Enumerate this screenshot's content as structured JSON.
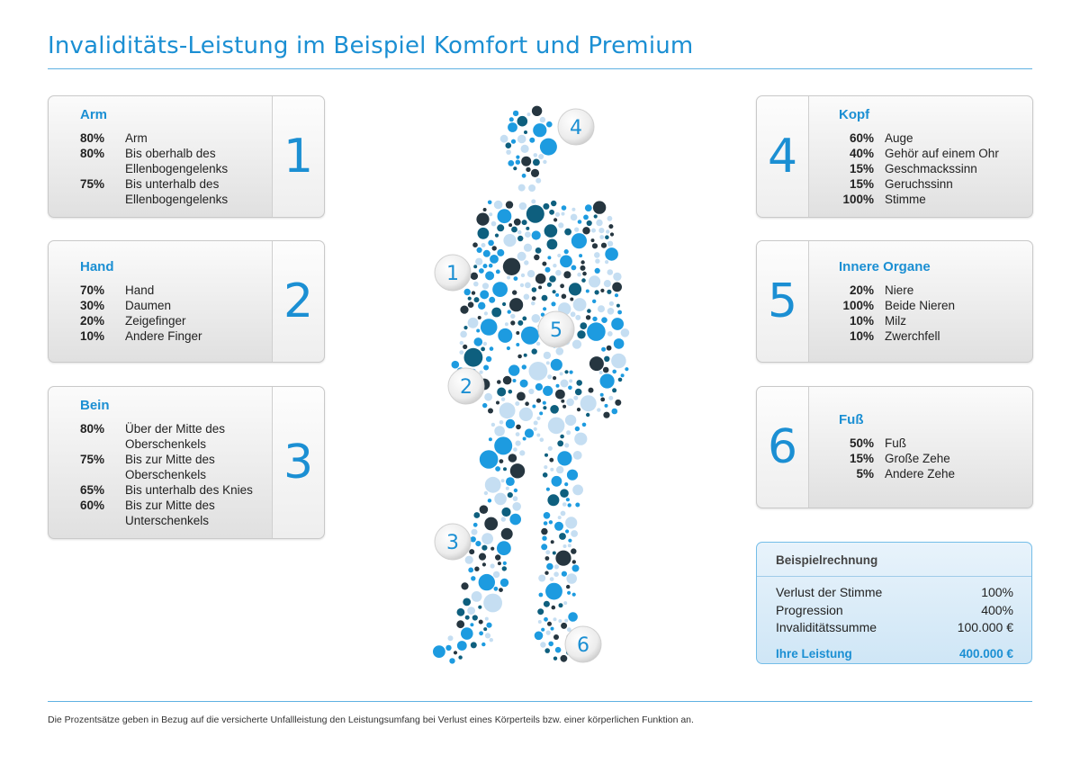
{
  "title": "Invaliditäts-Leistung im Beispiel Komfort und Premium",
  "cards_left": [
    {
      "number": "1",
      "title": "Arm",
      "rows": [
        {
          "pct": "80%",
          "label": "Arm"
        },
        {
          "pct": "80%",
          "label": "Bis oberhalb des Ellenbogengelenks"
        },
        {
          "pct": "75%",
          "label": "Bis unterhalb des Ellenbogengelenks"
        }
      ]
    },
    {
      "number": "2",
      "title": "Hand",
      "rows": [
        {
          "pct": "70%",
          "label": "Hand"
        },
        {
          "pct": "30%",
          "label": "Daumen"
        },
        {
          "pct": "20%",
          "label": "Zeigefinger"
        },
        {
          "pct": "10%",
          "label": "Andere Finger"
        }
      ]
    },
    {
      "number": "3",
      "title": "Bein",
      "rows": [
        {
          "pct": "80%",
          "label": "Über der Mitte des Oberschenkels"
        },
        {
          "pct": "75%",
          "label": "Bis zur Mitte des Oberschenkels"
        },
        {
          "pct": "65%",
          "label": "Bis unterhalb des Knies"
        },
        {
          "pct": "60%",
          "label": "Bis zur Mitte des Unterschenkels"
        }
      ]
    }
  ],
  "cards_right": [
    {
      "number": "4",
      "title": "Kopf",
      "rows": [
        {
          "pct": "60%",
          "label": "Auge"
        },
        {
          "pct": "40%",
          "label": "Gehör auf einem Ohr"
        },
        {
          "pct": "15%",
          "label": "Geschmackssinn"
        },
        {
          "pct": "15%",
          "label": "Geruchssinn"
        },
        {
          "pct": "100%",
          "label": "Stimme"
        }
      ]
    },
    {
      "number": "5",
      "title": "Innere Organe",
      "rows": [
        {
          "pct": "20%",
          "label": "Niere"
        },
        {
          "pct": "100%",
          "label": "Beide Nieren"
        },
        {
          "pct": "10%",
          "label": "Milz"
        },
        {
          "pct": "10%",
          "label": "Zwerchfell"
        }
      ]
    },
    {
      "number": "6",
      "title": "Fuß",
      "rows": [
        {
          "pct": "50%",
          "label": "Fuß"
        },
        {
          "pct": "15%",
          "label": "Große Zehe"
        },
        {
          "pct": "5%",
          "label": "Andere Zehe"
        }
      ]
    }
  ],
  "calculation": {
    "title": "Beispielrechnung",
    "rows": [
      {
        "label": "Verlust der Stimme",
        "value": "100%"
      },
      {
        "label": "Progression",
        "value": "400%"
      },
      {
        "label": "Invaliditätssumme",
        "value": "100.000 €"
      }
    ],
    "total_label": "Ihre Leistung",
    "total_value": "400.000 €"
  },
  "figure_markers": [
    "1",
    "2",
    "3",
    "4",
    "5",
    "6"
  ],
  "colors": {
    "accent": "#1b8fd3",
    "dot_light": "#c5def2",
    "dot_blue": "#1d9be0",
    "dot_teal": "#0e5f7e",
    "dot_dark": "#263640"
  },
  "footnote": "Die Prozentsätze geben in Bezug auf die versicherte Unfallleistung den Leistungsumfang bei Verlust eines Körperteils bzw. einer körperlichen Funktion an."
}
